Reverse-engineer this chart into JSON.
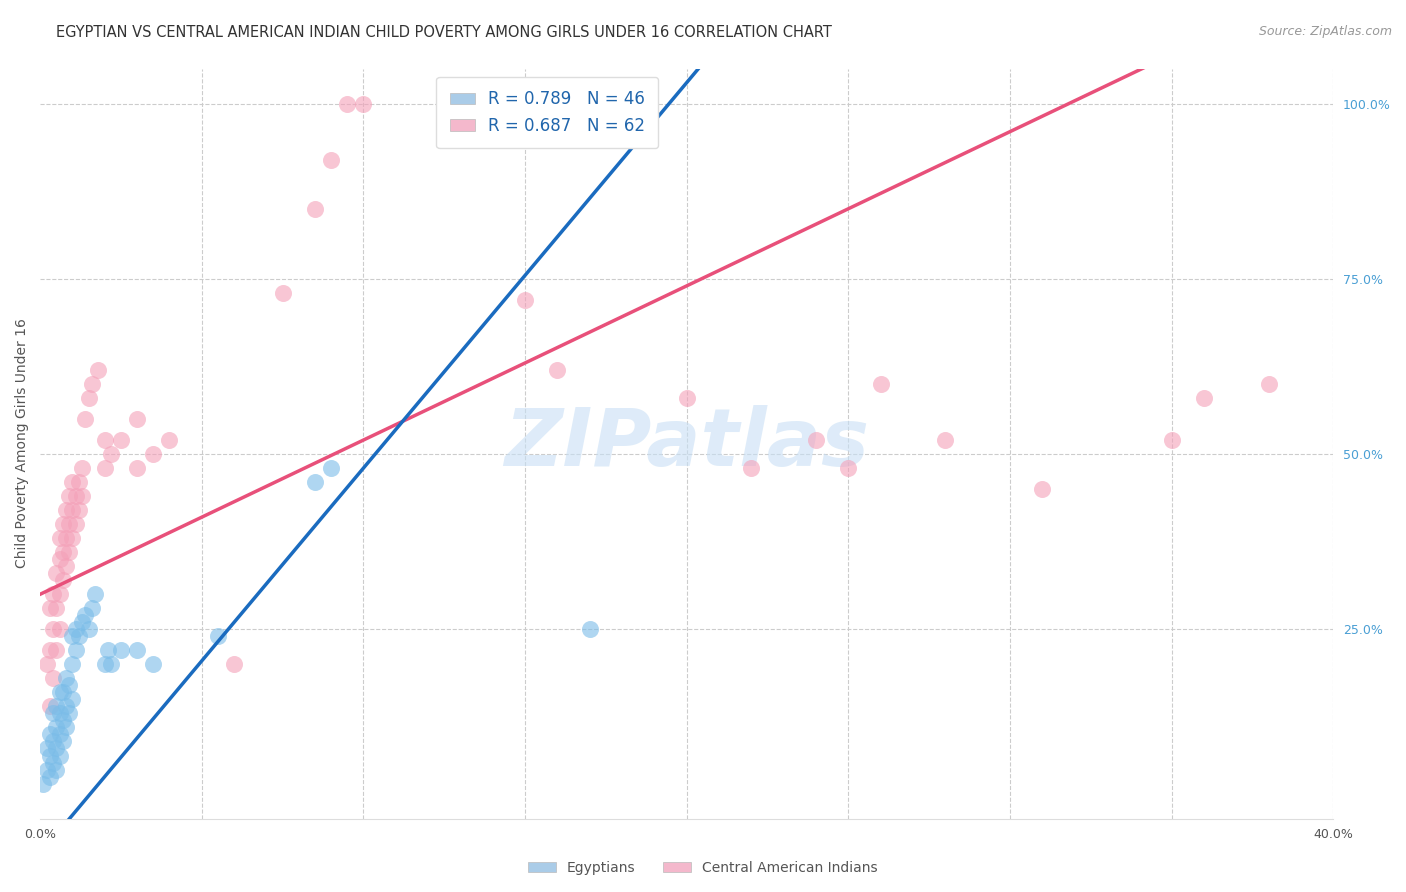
{
  "title": "EGYPTIAN VS CENTRAL AMERICAN INDIAN CHILD POVERTY AMONG GIRLS UNDER 16 CORRELATION CHART",
  "source": "Source: ZipAtlas.com",
  "ylabel": "Child Poverty Among Girls Under 16",
  "xlim": [
    0.0,
    0.4
  ],
  "ylim": [
    -0.02,
    1.05
  ],
  "yticks_right": [
    0.25,
    0.5,
    0.75,
    1.0
  ],
  "ytick_right_labels": [
    "25.0%",
    "50.0%",
    "75.0%",
    "100.0%"
  ],
  "xtick_positions": [
    0.0,
    0.05,
    0.1,
    0.15,
    0.2,
    0.25,
    0.3,
    0.35,
    0.4
  ],
  "blue_scatter_color": "#7abce8",
  "pink_scatter_color": "#f4a0b8",
  "blue_line_color": "#1a6bbf",
  "pink_line_color": "#e8507a",
  "blue_line_intercept": -0.07,
  "blue_line_slope": 5.5,
  "blue_line_solid_end": 0.21,
  "pink_line_intercept": 0.3,
  "pink_line_slope": 2.2,
  "watermark": "ZIPatlas",
  "background_color": "#ffffff",
  "grid_color": "#cccccc",
  "title_color": "#333333",
  "axis_label_color": "#555555",
  "right_tick_color": "#4a9fd4",
  "legend_items": [
    {
      "label": "R = 0.789   N = 46",
      "facecolor": "#aacce8"
    },
    {
      "label": "R = 0.687   N = 62",
      "facecolor": "#f4b8cc"
    }
  ],
  "blue_scatter": [
    [
      0.001,
      0.03
    ],
    [
      0.002,
      0.05
    ],
    [
      0.002,
      0.08
    ],
    [
      0.003,
      0.04
    ],
    [
      0.003,
      0.07
    ],
    [
      0.003,
      0.1
    ],
    [
      0.004,
      0.06
    ],
    [
      0.004,
      0.09
    ],
    [
      0.004,
      0.13
    ],
    [
      0.005,
      0.05
    ],
    [
      0.005,
      0.08
    ],
    [
      0.005,
      0.11
    ],
    [
      0.005,
      0.14
    ],
    [
      0.006,
      0.07
    ],
    [
      0.006,
      0.1
    ],
    [
      0.006,
      0.13
    ],
    [
      0.006,
      0.16
    ],
    [
      0.007,
      0.09
    ],
    [
      0.007,
      0.12
    ],
    [
      0.007,
      0.16
    ],
    [
      0.008,
      0.11
    ],
    [
      0.008,
      0.14
    ],
    [
      0.008,
      0.18
    ],
    [
      0.009,
      0.13
    ],
    [
      0.009,
      0.17
    ],
    [
      0.01,
      0.15
    ],
    [
      0.01,
      0.2
    ],
    [
      0.01,
      0.24
    ],
    [
      0.011,
      0.22
    ],
    [
      0.011,
      0.25
    ],
    [
      0.012,
      0.24
    ],
    [
      0.013,
      0.26
    ],
    [
      0.014,
      0.27
    ],
    [
      0.015,
      0.25
    ],
    [
      0.016,
      0.28
    ],
    [
      0.017,
      0.3
    ],
    [
      0.02,
      0.2
    ],
    [
      0.021,
      0.22
    ],
    [
      0.022,
      0.2
    ],
    [
      0.025,
      0.22
    ],
    [
      0.03,
      0.22
    ],
    [
      0.035,
      0.2
    ],
    [
      0.055,
      0.24
    ],
    [
      0.085,
      0.46
    ],
    [
      0.09,
      0.48
    ],
    [
      0.17,
      0.25
    ]
  ],
  "pink_scatter": [
    [
      0.002,
      0.2
    ],
    [
      0.003,
      0.14
    ],
    [
      0.003,
      0.22
    ],
    [
      0.003,
      0.28
    ],
    [
      0.004,
      0.18
    ],
    [
      0.004,
      0.25
    ],
    [
      0.004,
      0.3
    ],
    [
      0.005,
      0.22
    ],
    [
      0.005,
      0.28
    ],
    [
      0.005,
      0.33
    ],
    [
      0.006,
      0.25
    ],
    [
      0.006,
      0.3
    ],
    [
      0.006,
      0.35
    ],
    [
      0.006,
      0.38
    ],
    [
      0.007,
      0.32
    ],
    [
      0.007,
      0.36
    ],
    [
      0.007,
      0.4
    ],
    [
      0.008,
      0.34
    ],
    [
      0.008,
      0.38
    ],
    [
      0.008,
      0.42
    ],
    [
      0.009,
      0.36
    ],
    [
      0.009,
      0.4
    ],
    [
      0.009,
      0.44
    ],
    [
      0.01,
      0.38
    ],
    [
      0.01,
      0.42
    ],
    [
      0.01,
      0.46
    ],
    [
      0.011,
      0.4
    ],
    [
      0.011,
      0.44
    ],
    [
      0.012,
      0.42
    ],
    [
      0.012,
      0.46
    ],
    [
      0.013,
      0.44
    ],
    [
      0.013,
      0.48
    ],
    [
      0.014,
      0.55
    ],
    [
      0.015,
      0.58
    ],
    [
      0.016,
      0.6
    ],
    [
      0.018,
      0.62
    ],
    [
      0.02,
      0.48
    ],
    [
      0.02,
      0.52
    ],
    [
      0.022,
      0.5
    ],
    [
      0.025,
      0.52
    ],
    [
      0.03,
      0.48
    ],
    [
      0.03,
      0.55
    ],
    [
      0.035,
      0.5
    ],
    [
      0.04,
      0.52
    ],
    [
      0.06,
      0.2
    ],
    [
      0.075,
      0.73
    ],
    [
      0.085,
      0.85
    ],
    [
      0.09,
      0.92
    ],
    [
      0.095,
      1.0
    ],
    [
      0.1,
      1.0
    ],
    [
      0.15,
      0.72
    ],
    [
      0.16,
      0.62
    ],
    [
      0.2,
      0.58
    ],
    [
      0.22,
      0.48
    ],
    [
      0.24,
      0.52
    ],
    [
      0.25,
      0.48
    ],
    [
      0.26,
      0.6
    ],
    [
      0.28,
      0.52
    ],
    [
      0.31,
      0.45
    ],
    [
      0.35,
      0.52
    ],
    [
      0.36,
      0.58
    ],
    [
      0.38,
      0.6
    ]
  ]
}
